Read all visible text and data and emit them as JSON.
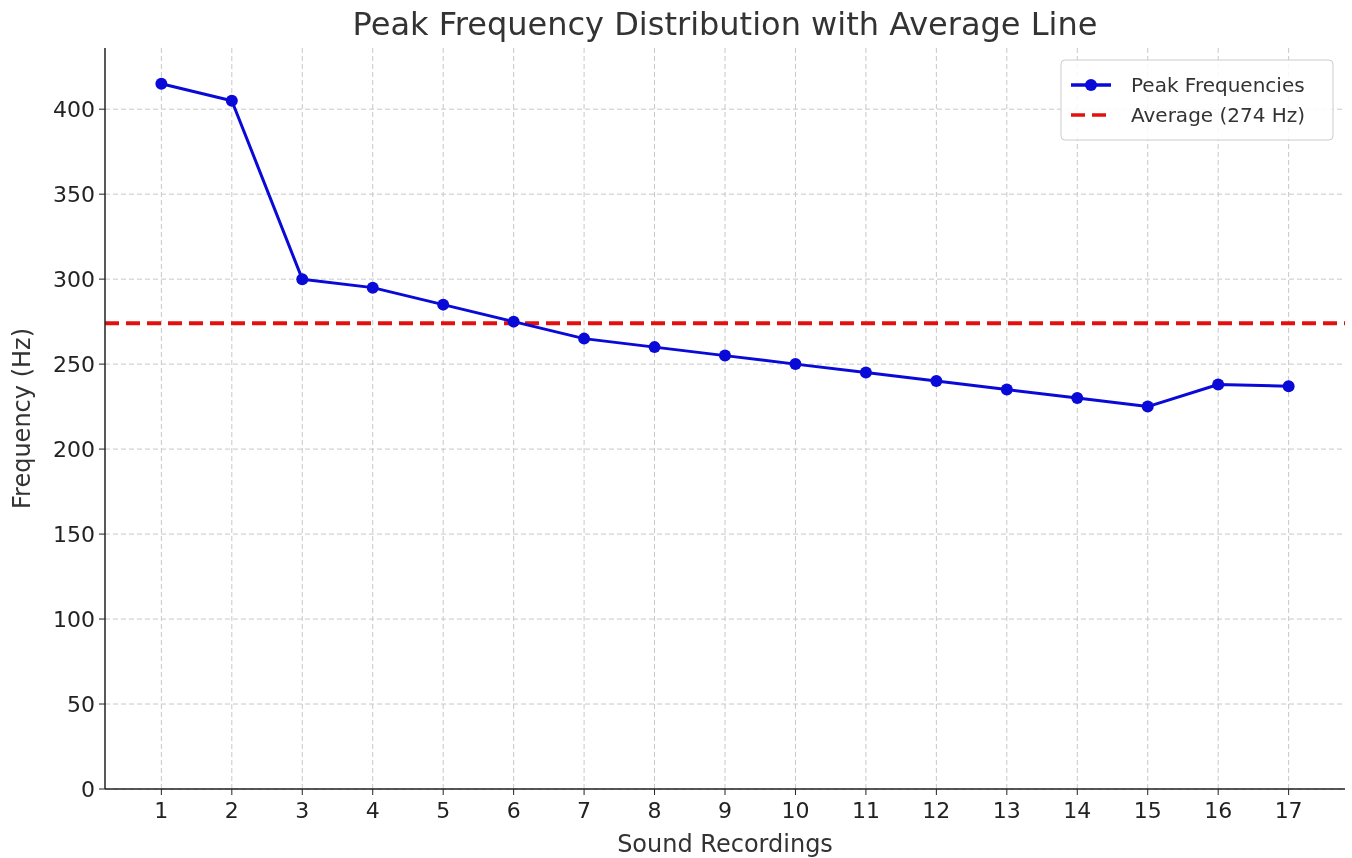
{
  "chart_data": {
    "type": "line",
    "title": "Peak Frequency Distribution with Average Line",
    "xlabel": "Sound Recordings",
    "ylabel": "Frequency (Hz)",
    "x": [
      1,
      2,
      3,
      4,
      5,
      6,
      7,
      8,
      9,
      10,
      11,
      12,
      13,
      14,
      15,
      16,
      17
    ],
    "series": [
      {
        "name": "Peak Frequencies",
        "color": "#0a0ad8",
        "values": [
          415,
          405,
          300,
          295,
          285,
          275,
          265,
          260,
          255,
          250,
          245,
          240,
          235,
          230,
          225,
          238,
          237
        ]
      }
    ],
    "xlim": [
      0.2,
      17.8
    ],
    "xticks": [
      1,
      2,
      3,
      4,
      5,
      6,
      7,
      8,
      9,
      10,
      11,
      12,
      13,
      14,
      15,
      16,
      17
    ],
    "ylim": [
      0,
      436
    ],
    "yticks": [
      0,
      50,
      100,
      150,
      200,
      250,
      300,
      350,
      400
    ],
    "ref_lines": [
      {
        "axis": "y",
        "value": 274,
        "label": "Average (274 Hz)",
        "color": "#e31010",
        "line_style": "dashed"
      }
    ],
    "grid": true,
    "legend": "top right",
    "marker": "circle",
    "line_style": "solid"
  }
}
